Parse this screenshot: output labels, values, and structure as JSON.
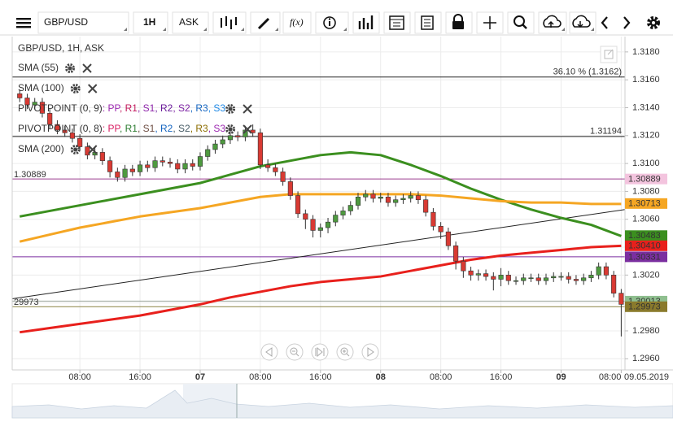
{
  "toolbar": {
    "symbol": "GBP/USD",
    "interval": "1H",
    "price_side": "ASK",
    "function_button": "f(x)"
  },
  "chart_data": {
    "type": "candlestick",
    "title": "GBP/USD, 1H, ASK",
    "date_label": "09.05.2019",
    "xlim": [
      -25,
      56.5
    ],
    "ylim": [
      1.2952,
      1.3191
    ],
    "grid": true,
    "up_color": "#4e9a3f",
    "down_color": "#d93a33",
    "xticks": [
      {
        "value": -16,
        "label": "08:00"
      },
      {
        "value": -8,
        "label": "16:00"
      },
      {
        "value": 0,
        "label": "07"
      },
      {
        "value": 8,
        "label": "08:00"
      },
      {
        "value": 16,
        "label": "16:00"
      },
      {
        "value": 24,
        "label": "08"
      },
      {
        "value": 32,
        "label": "08:00"
      },
      {
        "value": 40,
        "label": "16:00"
      },
      {
        "value": 48,
        "label": "09"
      },
      {
        "value": 56,
        "label": "08:00"
      }
    ],
    "yticks": [
      {
        "value": 1.296,
        "label": "1.2960"
      },
      {
        "value": 1.298,
        "label": "1.2980"
      },
      {
        "value": 1.3,
        "label": "1.3000"
      },
      {
        "value": 1.302,
        "label": "1.3020"
      },
      {
        "value": 1.304,
        "label": "1.3040"
      },
      {
        "value": 1.306,
        "label": "1.3060"
      },
      {
        "value": 1.308,
        "label": "1.3080"
      },
      {
        "value": 1.31,
        "label": "1.3100"
      },
      {
        "value": 1.312,
        "label": "1.3120"
      },
      {
        "value": 1.314,
        "label": "1.3140"
      },
      {
        "value": 1.316,
        "label": "1.3160"
      },
      {
        "value": 1.318,
        "label": "1.3180"
      }
    ],
    "candles": {
      "x": [
        -24,
        -23,
        -22,
        -21,
        -20,
        -19,
        -18,
        -17,
        -16,
        -15,
        -14,
        -13,
        -12,
        -11,
        -10,
        -9,
        -8,
        -7,
        -6,
        -5,
        -4,
        -3,
        -2,
        -1,
        0,
        1,
        2,
        3,
        4,
        5,
        6,
        7,
        8,
        9,
        10,
        11,
        12,
        13,
        14,
        15,
        16,
        17,
        18,
        19,
        20,
        21,
        22,
        23,
        24,
        25,
        26,
        27,
        28,
        29,
        30,
        31,
        32,
        33,
        34,
        35,
        36,
        37,
        38,
        39,
        40,
        41,
        42,
        43,
        44,
        45,
        46,
        47,
        48,
        49,
        50,
        51,
        52,
        53,
        54,
        55,
        56
      ],
      "open": [
        1.315,
        1.3147,
        1.3142,
        1.3144,
        1.3136,
        1.3128,
        1.3124,
        1.3122,
        1.3118,
        1.3112,
        1.3106,
        1.3108,
        1.3102,
        1.3094,
        1.309,
        1.3096,
        1.3094,
        1.3099,
        1.3097,
        1.3102,
        1.3101,
        1.31,
        1.3096,
        1.31,
        1.3098,
        1.3105,
        1.311,
        1.3114,
        1.3117,
        1.312,
        1.3119,
        1.3124,
        1.3122,
        1.3099,
        1.3097,
        1.3094,
        1.3087,
        1.3077,
        1.3064,
        1.306,
        1.3052,
        1.3054,
        1.3058,
        1.3063,
        1.3066,
        1.307,
        1.3076,
        1.3078,
        1.3075,
        1.3076,
        1.3072,
        1.3074,
        1.3075,
        1.3077,
        1.3074,
        1.3065,
        1.3055,
        1.3051,
        1.3041,
        1.303,
        1.3023,
        1.302,
        1.3021,
        1.3019,
        1.3017,
        1.302,
        1.3016,
        1.3016,
        1.3018,
        1.3018,
        1.3016,
        1.3018,
        1.3019,
        1.3019,
        1.3017,
        1.3016,
        1.3018,
        1.302,
        1.3026,
        1.302,
        1.3007
      ],
      "high": [
        1.3153,
        1.315,
        1.3147,
        1.3147,
        1.3139,
        1.3131,
        1.3127,
        1.3125,
        1.3121,
        1.3115,
        1.3111,
        1.3111,
        1.3105,
        1.3097,
        1.3099,
        1.3099,
        1.3102,
        1.3102,
        1.3105,
        1.3105,
        1.3104,
        1.3103,
        1.3103,
        1.3103,
        1.3108,
        1.3113,
        1.3117,
        1.312,
        1.3123,
        1.3123,
        1.3127,
        1.3128,
        1.3125,
        1.3103,
        1.31,
        1.3097,
        1.309,
        1.308,
        1.3067,
        1.3063,
        1.3057,
        1.3061,
        1.3066,
        1.3069,
        1.3073,
        1.3079,
        1.3081,
        1.3081,
        1.3079,
        1.3079,
        1.3077,
        1.3078,
        1.308,
        1.308,
        1.3077,
        1.3068,
        1.3058,
        1.3054,
        1.3044,
        1.3033,
        1.3026,
        1.3024,
        1.3024,
        1.3022,
        1.3025,
        1.3023,
        1.3019,
        1.3021,
        1.3021,
        1.3021,
        1.3021,
        1.3022,
        1.3022,
        1.3022,
        1.302,
        1.3021,
        1.3023,
        1.3029,
        1.3029,
        1.3023,
        1.301
      ],
      "low": [
        1.3144,
        1.3139,
        1.3139,
        1.3133,
        1.3125,
        1.3121,
        1.3119,
        1.3115,
        1.3109,
        1.3103,
        1.3103,
        1.3099,
        1.309,
        1.3087,
        1.3087,
        1.3091,
        1.3091,
        1.3094,
        1.3094,
        1.3098,
        1.3097,
        1.3093,
        1.3093,
        1.3095,
        1.3095,
        1.3102,
        1.3107,
        1.3111,
        1.3114,
        1.3116,
        1.3116,
        1.3119,
        1.3096,
        1.3094,
        1.3091,
        1.3084,
        1.3074,
        1.3061,
        1.3053,
        1.3047,
        1.3047,
        1.305,
        1.3055,
        1.306,
        1.3063,
        1.3067,
        1.3073,
        1.3072,
        1.3072,
        1.3069,
        1.3069,
        1.3071,
        1.3072,
        1.3071,
        1.3062,
        1.3052,
        1.3046,
        1.3038,
        1.3024,
        1.3018,
        1.3016,
        1.3016,
        1.3016,
        1.3009,
        1.3012,
        1.3013,
        1.3013,
        1.3013,
        1.3015,
        1.3013,
        1.3013,
        1.3015,
        1.3016,
        1.3014,
        1.3013,
        1.3013,
        1.3015,
        1.3017,
        1.3017,
        1.3004,
        1.2976
      ],
      "close": [
        1.3147,
        1.3142,
        1.3144,
        1.3136,
        1.3128,
        1.3124,
        1.3122,
        1.3118,
        1.3112,
        1.3106,
        1.3108,
        1.3102,
        1.3094,
        1.309,
        1.3096,
        1.3094,
        1.3099,
        1.3097,
        1.3102,
        1.3101,
        1.31,
        1.3096,
        1.31,
        1.3098,
        1.3105,
        1.311,
        1.3114,
        1.3117,
        1.312,
        1.3119,
        1.3124,
        1.3122,
        1.3099,
        1.3097,
        1.3094,
        1.3087,
        1.3077,
        1.3064,
        1.306,
        1.3052,
        1.3054,
        1.3058,
        1.3063,
        1.3066,
        1.307,
        1.3076,
        1.3078,
        1.3075,
        1.3076,
        1.3072,
        1.3074,
        1.3075,
        1.3077,
        1.3074,
        1.3065,
        1.3055,
        1.3051,
        1.3041,
        1.303,
        1.3023,
        1.302,
        1.3021,
        1.3019,
        1.3017,
        1.302,
        1.3016,
        1.3016,
        1.3018,
        1.3018,
        1.3016,
        1.3018,
        1.3019,
        1.3019,
        1.3017,
        1.3016,
        1.3018,
        1.302,
        1.3026,
        1.302,
        1.3007,
        1.2999
      ]
    },
    "series": [
      {
        "name": "SMA (55)",
        "color": "#3b8f1f",
        "x": [
          -24,
          -20,
          -16,
          -12,
          -8,
          -4,
          0,
          4,
          8,
          12,
          16,
          20,
          24,
          28,
          32,
          36,
          40,
          44,
          48,
          52,
          56
        ],
        "values": [
          1.3062,
          1.3066,
          1.307,
          1.3074,
          1.3078,
          1.3082,
          1.3086,
          1.3092,
          1.3098,
          1.3102,
          1.3106,
          1.3108,
          1.3106,
          1.3099,
          1.3091,
          1.3082,
          1.3074,
          1.3067,
          1.3061,
          1.3056,
          1.3048
        ]
      },
      {
        "name": "SMA (100)",
        "color": "#f5a623",
        "x": [
          -24,
          -20,
          -16,
          -12,
          -8,
          -4,
          0,
          4,
          8,
          12,
          16,
          20,
          24,
          28,
          32,
          36,
          40,
          44,
          48,
          52,
          56
        ],
        "values": [
          1.3044,
          1.3049,
          1.3054,
          1.3058,
          1.3062,
          1.3065,
          1.3068,
          1.3072,
          1.3076,
          1.3078,
          1.3078,
          1.3078,
          1.3078,
          1.3078,
          1.3077,
          1.3075,
          1.3073,
          1.3072,
          1.3072,
          1.3071,
          1.3071
        ]
      },
      {
        "name": "SMA (200)",
        "color": "#e8201c",
        "x": [
          -24,
          -20,
          -16,
          -12,
          -8,
          -4,
          0,
          4,
          8,
          12,
          16,
          20,
          24,
          28,
          32,
          36,
          40,
          44,
          48,
          52,
          56
        ],
        "values": [
          1.2979,
          1.2982,
          1.2985,
          1.2988,
          1.2991,
          1.2995,
          1.2999,
          1.3004,
          1.3008,
          1.3012,
          1.3015,
          1.3017,
          1.3019,
          1.3023,
          1.3027,
          1.3031,
          1.3034,
          1.3036,
          1.3038,
          1.304,
          1.3041
        ]
      }
    ],
    "trend_line": {
      "color": "#222222",
      "x": [
        -25,
        56.5
      ],
      "values": [
        1.3003,
        1.3067
      ]
    },
    "pivots": [
      {
        "name": "PIVOTPOINT (0, 9)",
        "items": [
          ": PP",
          ", R1",
          ", S1",
          ", R2",
          ", S2",
          ", R3",
          ", S3"
        ],
        "colors": [
          "#9c27b0",
          "#c2185b",
          "#8e24aa",
          "#6a1b9a",
          "#7b1fa2",
          "#1565c0",
          "#1e88e5"
        ]
      },
      {
        "name": "PIVOTPOINT (0, 8)",
        "items": [
          ": PP",
          ", R1",
          ", S1",
          ", R2",
          ", S2",
          ", R3",
          ", S3"
        ],
        "colors": [
          "#d81b60",
          "#2e7d32",
          "#6d4c41",
          "#1565c0",
          "#455a64",
          "#8d6e00",
          "#9c27b0"
        ]
      }
    ],
    "levels": [
      {
        "value": 1.3162,
        "color": "#222222",
        "label": "36.10 % (1.3162)"
      },
      {
        "value": 1.31194,
        "color": "#222222",
        "label": "1.31194"
      },
      {
        "value": 1.30889,
        "color": "#9b3d8f",
        "left_label": "1.30889"
      },
      {
        "value": 1.30331,
        "color": "#7b2fa0"
      },
      {
        "value": 1.30013,
        "color": "#9aa39a"
      },
      {
        "value": 1.29973,
        "color": "#8a8442",
        "left_label": "29973"
      }
    ],
    "price_tags": [
      {
        "value": 1.30889,
        "label": "1.30889",
        "color": "#f3c4de",
        "text_color": "#222222"
      },
      {
        "value": 1.30713,
        "label": "1.30713",
        "color": "#f5a623",
        "text_color": "#222222"
      },
      {
        "value": 1.30483,
        "label": "1.30483",
        "color": "#3b8f1f",
        "text_color": "#ffffff"
      },
      {
        "value": 1.3041,
        "label": "1.30410",
        "color": "#e8201c",
        "text_color": "#ffffff"
      },
      {
        "value": 1.30331,
        "label": "1.30331",
        "color": "#7b2fa0",
        "text_color": "#ffffff"
      },
      {
        "value": 1.30013,
        "label": "1.30013",
        "color": "#8fbf8f",
        "text_color": "#ffffff"
      },
      {
        "value": 1.29973,
        "label": "1.29973",
        "color": "#8a7a2c",
        "text_color": "#ffffff"
      }
    ]
  }
}
